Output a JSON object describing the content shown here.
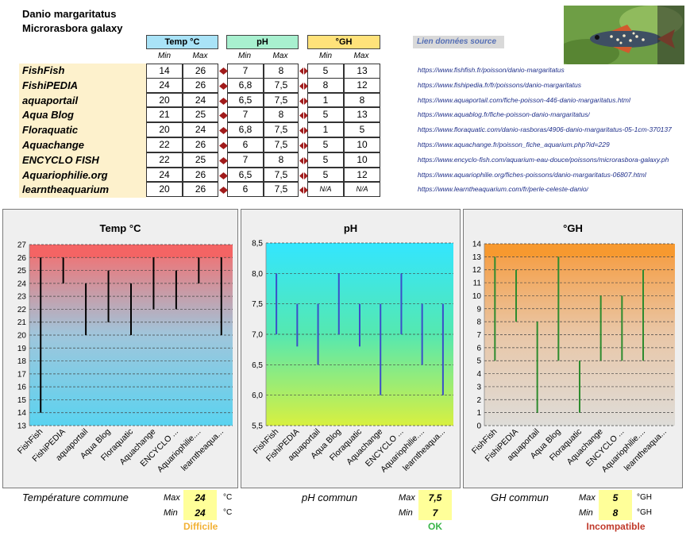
{
  "species": {
    "name": "Danio margaritatus",
    "synonym": "Microrasbora galaxy"
  },
  "table": {
    "headers": {
      "temp": "Temp °C",
      "ph": "pH",
      "gh": "°GH"
    },
    "min_label": "Min",
    "max_label": "Max",
    "link_header": "Lien données source",
    "rows": [
      {
        "source": "FishFish",
        "tmin": "14",
        "tmax": "26",
        "phmin": "7",
        "phmax": "8",
        "ghmin": "5",
        "ghmax": "13",
        "link": "https://www.fishfish.fr/poisson/danio-margaritatus"
      },
      {
        "source": "FishiPEDIA",
        "tmin": "24",
        "tmax": "26",
        "phmin": "6,8",
        "phmax": "7,5",
        "ghmin": "8",
        "ghmax": "12",
        "link": "https://www.fishipedia.fr/fr/poissons/danio-margaritatus"
      },
      {
        "source": "aquaportail",
        "tmin": "20",
        "tmax": "24",
        "phmin": "6,5",
        "phmax": "7,5",
        "ghmin": "1",
        "ghmax": "8",
        "link": "https://www.aquaportail.com/fiche-poisson-446-danio-margaritatus.html"
      },
      {
        "source": "Aqua Blog",
        "tmin": "21",
        "tmax": "25",
        "phmin": "7",
        "phmax": "8",
        "ghmin": "5",
        "ghmax": "13",
        "link": "https://www.aquablog.fr/fiche-poisson-danio-margaritatus/"
      },
      {
        "source": "Floraquatic",
        "tmin": "20",
        "tmax": "24",
        "phmin": "6,8",
        "phmax": "7,5",
        "ghmin": "1",
        "ghmax": "5",
        "link": "https://www.floraquatic.com/danio-rasboras/4906-danio-margaritatus-05-1cm-370137"
      },
      {
        "source": "Aquachange",
        "tmin": "22",
        "tmax": "26",
        "phmin": "6",
        "phmax": "7,5",
        "ghmin": "5",
        "ghmax": "10",
        "link": "https://www.aquachange.fr/poisson_fiche_aquarium.php?id=229"
      },
      {
        "source": "ENCYCLO FISH",
        "tmin": "22",
        "tmax": "25",
        "phmin": "7",
        "phmax": "8",
        "ghmin": "5",
        "ghmax": "10",
        "link": "https://www.encyclo-fish.com/aquarium-eau-douce/poissons/microrasbora-galaxy.ph"
      },
      {
        "source": "Aquariophilie.org",
        "tmin": "24",
        "tmax": "26",
        "phmin": "6,5",
        "phmax": "7,5",
        "ghmin": "5",
        "ghmax": "12",
        "link": "https://www.aquariophilie.org/fiches-poissons/danio-margaritatus-06807.html"
      },
      {
        "source": "learntheaquarium",
        "tmin": "20",
        "tmax": "26",
        "phmin": "6",
        "phmax": "7,5",
        "ghmin": "N/A",
        "ghmax": "N/A",
        "link": "https://www.learntheaquarium.com/fr/perle-celeste-danio/"
      }
    ]
  },
  "chart_data": [
    {
      "type": "range-bar",
      "title": "Temp °C",
      "categories": [
        "FishFish",
        "FishiPEDIA",
        "aquaportail",
        "Aqua Blog",
        "Floraquatic",
        "Aquachange",
        "ENCYCLO ...",
        "Aquariophilie....",
        "learntheaqua..."
      ],
      "min": [
        14,
        24,
        20,
        21,
        20,
        22,
        22,
        24,
        20
      ],
      "max": [
        26,
        26,
        24,
        25,
        24,
        26,
        25,
        26,
        26
      ],
      "ylim": [
        13,
        27
      ],
      "ystep": 1,
      "ydecimals": 0,
      "gradient": [
        "#f76b6b",
        "#9fc6dc",
        "#5ad3f0"
      ],
      "band_top_color": "#f46464",
      "bar_color": "#000000",
      "grid": "dashed"
    },
    {
      "type": "range-bar",
      "title": "pH",
      "categories": [
        "FishFish",
        "FishiPEDIA",
        "aquaportail",
        "Aqua Blog",
        "Floraquatic",
        "Aquachange",
        "ENCYCLO ...",
        "Aquariophilie....",
        "learntheaqua..."
      ],
      "min": [
        7,
        6.8,
        6.5,
        7,
        6.8,
        6,
        7,
        6.5,
        6
      ],
      "max": [
        8,
        7.5,
        7.5,
        8,
        7.5,
        7.5,
        8,
        7.5,
        7.5
      ],
      "ylim": [
        5.5,
        8.5
      ],
      "ystep": 0.5,
      "ydecimals": 1,
      "gradient": [
        "#33e6ff",
        "#55e8b0",
        "#d8f040"
      ],
      "bar_color": "#3a4fc9",
      "grid": "dashed"
    },
    {
      "type": "range-bar",
      "title": "°GH",
      "categories": [
        "FishFish",
        "FishiPEDIA",
        "aquaportail",
        "Aqua Blog",
        "Floraquatic",
        "Aquachange",
        "ENCYCLO ...",
        "Aquariophilie....",
        "learntheaqua..."
      ],
      "min": [
        5,
        8,
        1,
        5,
        1,
        5,
        5,
        5,
        null
      ],
      "max": [
        13,
        12,
        8,
        13,
        5,
        10,
        10,
        12,
        null
      ],
      "ylim": [
        0,
        14
      ],
      "ystep": 1,
      "ydecimals": 0,
      "gradient": [
        "#f79a3a",
        "#e9c7a8",
        "#dedcd8"
      ],
      "band_top_color": "#f7992f",
      "bar_color": "#2e8b2e",
      "grid": "dashed"
    }
  ],
  "summary": {
    "temp": {
      "label": "Température commune",
      "max": "24",
      "min": "24",
      "unit": "°C",
      "status": "Difficile",
      "status_color": "#f2b134"
    },
    "ph": {
      "label": "pH commun",
      "max": "7,5",
      "min": "7",
      "unit": "",
      "status": "OK",
      "status_color": "#39b54a"
    },
    "gh": {
      "label": "GH commun",
      "max": "5",
      "min": "8",
      "unit": "°GH",
      "status": "Incompatible",
      "status_color": "#c0392b"
    }
  },
  "colors": {
    "header_temp": "#a9e3f7",
    "header_ph": "#a8f0cf",
    "header_gh": "#ffe27a",
    "arrow": "#a11c1c",
    "link_bg": "#d9d9d9"
  }
}
